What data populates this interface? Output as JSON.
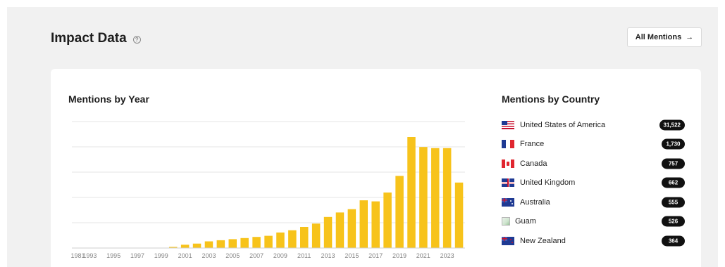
{
  "header": {
    "title": "Impact Data",
    "help_icon": "help-circle-icon",
    "all_mentions_label": "All Mentions",
    "all_mentions_icon": "arrow-right-icon"
  },
  "year_chart": {
    "title": "Mentions by Year"
  },
  "country_panel": {
    "title": "Mentions by Country",
    "countries": [
      {
        "name": "United States of America",
        "count": "31,522",
        "flag": "us-flag-icon"
      },
      {
        "name": "France",
        "count": "1,730",
        "flag": "france-flag-icon"
      },
      {
        "name": "Canada",
        "count": "757",
        "flag": "canada-flag-icon"
      },
      {
        "name": "United Kingdom",
        "count": "662",
        "flag": "uk-flag-icon"
      },
      {
        "name": "Australia",
        "count": "555",
        "flag": "australia-flag-icon"
      },
      {
        "name": "Guam",
        "count": "526",
        "flag": "broken-image-icon"
      },
      {
        "name": "New Zealand",
        "count": "364",
        "flag": "new-zealand-flag-icon"
      }
    ]
  },
  "colors": {
    "bar": "#f7c31b",
    "grid": "#e6e6e6",
    "badge": "#111111"
  },
  "chart_data": {
    "type": "bar",
    "title": "Mentions by Year",
    "tick_labels": [
      "1981",
      "1993",
      "1995",
      "1997",
      "1999",
      "2001",
      "2003",
      "2005",
      "2007",
      "2009",
      "2011",
      "2013",
      "2015",
      "2017",
      "2019",
      "2021",
      "2023"
    ],
    "categories": [
      "1981",
      "1993",
      "1994",
      "1995",
      "1996",
      "1997",
      "1998",
      "1999",
      "2000",
      "2001",
      "2002",
      "2003",
      "2004",
      "2005",
      "2006",
      "2007",
      "2008",
      "2009",
      "2010",
      "2011",
      "2012",
      "2013",
      "2014",
      "2015",
      "2016",
      "2017",
      "2018",
      "2019",
      "2020",
      "2021",
      "2022",
      "2023",
      "2024"
    ],
    "values": [
      0,
      0,
      0,
      0,
      0,
      0,
      0,
      0,
      0.01,
      0.03,
      0.04,
      0.06,
      0.07,
      0.08,
      0.09,
      0.1,
      0.11,
      0.14,
      0.16,
      0.19,
      0.22,
      0.28,
      0.32,
      0.35,
      0.43,
      0.42,
      0.5,
      0.65,
      1.0,
      0.91,
      0.9,
      0.9,
      0.59
    ],
    "grid": true,
    "y_axis_labels": false
  }
}
